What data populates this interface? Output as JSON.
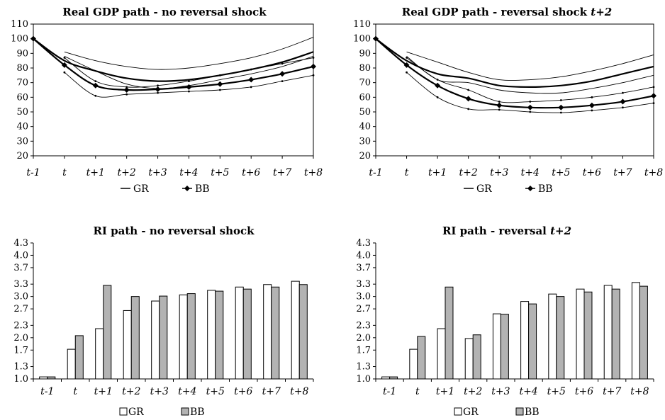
{
  "colors": {
    "gr_bar": "#ffffff",
    "bb_bar": "#b3b3b3",
    "line": "#000000"
  },
  "chart_data": [
    {
      "type": "line",
      "title": "Real GDP path - no reversal shock",
      "title_main": "Real GDP path - no reversal shock",
      "title_italic": "",
      "x": [
        "t-1",
        "t",
        "t+1",
        "t+2",
        "t+3",
        "t+4",
        "t+5",
        "t+6",
        "t+7",
        "t+8"
      ],
      "ylim": [
        20,
        110
      ],
      "yticks": [
        20,
        30,
        40,
        50,
        60,
        70,
        80,
        90,
        100,
        110
      ],
      "legend": {
        "gr": "GR",
        "bb": "BB"
      },
      "series": [
        {
          "name": "GR",
          "values": [
            100,
            85,
            78,
            73,
            71,
            72,
            75,
            79,
            84,
            91
          ]
        },
        {
          "name": "BB",
          "values": [
            100,
            82,
            68,
            65,
            65.5,
            67,
            69,
            72,
            76,
            81
          ]
        }
      ],
      "bands": [
        {
          "of": "GR",
          "values": [
            null,
            91,
            85,
            81,
            79,
            80,
            83,
            87,
            93,
            101
          ]
        },
        {
          "of": "GR",
          "values": [
            null,
            88,
            78,
            69,
            66,
            68,
            72,
            76,
            81,
            88
          ]
        },
        {
          "of": "BB",
          "values": [
            null,
            87,
            71,
            67,
            68,
            71,
            75,
            79,
            83,
            87
          ]
        },
        {
          "of": "BB",
          "values": [
            null,
            77,
            61,
            62,
            63,
            64,
            65,
            67,
            71,
            75
          ]
        }
      ]
    },
    {
      "type": "line",
      "title": "Real GDP path - reversal shock t+2",
      "title_main": "Real GDP path - reversal shock ",
      "title_italic": "t+2",
      "x": [
        "t-1",
        "t",
        "t+1",
        "t+2",
        "t+3",
        "t+4",
        "t+5",
        "t+6",
        "t+7",
        "t+8"
      ],
      "ylim": [
        20,
        110
      ],
      "yticks": [
        20,
        30,
        40,
        50,
        60,
        70,
        80,
        90,
        100,
        110
      ],
      "legend": {
        "gr": "GR",
        "bb": "BB"
      },
      "series": [
        {
          "name": "GR",
          "values": [
            100,
            85,
            76,
            73,
            68,
            67,
            68,
            71,
            76,
            81
          ]
        },
        {
          "name": "BB",
          "values": [
            100,
            82,
            68,
            59,
            54.5,
            53,
            53,
            54.5,
            57,
            61
          ]
        }
      ],
      "bands": [
        {
          "of": "GR",
          "values": [
            null,
            91,
            84,
            77,
            72,
            72,
            74,
            78,
            83,
            89
          ]
        },
        {
          "of": "GR",
          "values": [
            null,
            88,
            72,
            70,
            65,
            63,
            63,
            66,
            70,
            75
          ]
        },
        {
          "of": "BB",
          "values": [
            null,
            87,
            72,
            65,
            57,
            57,
            58,
            60,
            63,
            67
          ]
        },
        {
          "of": "BB",
          "values": [
            null,
            77,
            60,
            52,
            51.5,
            50,
            49.5,
            51,
            53,
            56
          ]
        }
      ]
    },
    {
      "type": "bar",
      "title": "RI path - no reversal shock",
      "title_main": "RI path - no reversal shock",
      "title_italic": "",
      "categories": [
        "t-1",
        "t",
        "t+1",
        "t+2",
        "t+3",
        "t+4",
        "t+5",
        "t+6",
        "t+7",
        "t+8"
      ],
      "ylim": [
        1.0,
        4.3
      ],
      "yticks": [
        "1.0",
        "1.3",
        "1.7",
        "2.0",
        "2.3",
        "2.7",
        "3.0",
        "3.3",
        "3.7",
        "4.0",
        "4.3"
      ],
      "legend": {
        "gr": "GR",
        "bb": "BB"
      },
      "series": [
        {
          "name": "GR",
          "values": [
            1.05,
            1.72,
            2.22,
            2.66,
            2.89,
            3.04,
            3.15,
            3.23,
            3.29,
            3.37
          ]
        },
        {
          "name": "BB",
          "values": [
            1.05,
            2.05,
            3.27,
            3.0,
            3.01,
            3.07,
            3.13,
            3.18,
            3.23,
            3.29
          ]
        }
      ]
    },
    {
      "type": "bar",
      "title": "RI path - reversal t+2",
      "title_main": "RI path - reversal ",
      "title_italic": "t+2",
      "categories": [
        "t-1",
        "t",
        "t+1",
        "t+2",
        "t+3",
        "t+4",
        "t+5",
        "t+6",
        "t+7",
        "t+8"
      ],
      "ylim": [
        1.0,
        4.3
      ],
      "yticks": [
        "1.0",
        "1.3",
        "1.7",
        "2.0",
        "2.3",
        "2.7",
        "3.0",
        "3.3",
        "3.7",
        "4.0",
        "4.3"
      ],
      "legend": {
        "gr": "GR",
        "bb": "BB"
      },
      "series": [
        {
          "name": "GR",
          "values": [
            1.05,
            1.72,
            2.22,
            1.98,
            2.58,
            2.88,
            3.06,
            3.18,
            3.27,
            3.34
          ]
        },
        {
          "name": "BB",
          "values": [
            1.05,
            2.03,
            3.23,
            2.07,
            2.57,
            2.82,
            3.0,
            3.11,
            3.18,
            3.25
          ]
        }
      ]
    }
  ]
}
